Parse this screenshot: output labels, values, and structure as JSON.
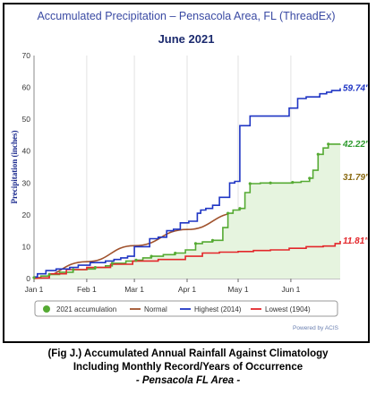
{
  "chart_data": {
    "type": "line",
    "title": "Accumulated Precipitation – Pensacola Area, FL (ThreadEx)",
    "subtitle": "June 2021",
    "ylabel": "Precipitation (inches)",
    "xlabel": "",
    "ylim": [
      0,
      70
    ],
    "yticks": [
      0,
      10,
      20,
      30,
      40,
      50,
      60,
      70
    ],
    "xlim": [
      "2021-01-01",
      "2021-06-30"
    ],
    "xticks": [
      {
        "date": "2021-01-01",
        "label": "Jan 1"
      },
      {
        "date": "2021-02-01",
        "label": "Feb 1"
      },
      {
        "date": "2021-03-01",
        "label": "Mar 1"
      },
      {
        "date": "2021-04-01",
        "label": "Apr 1"
      },
      {
        "date": "2021-05-01",
        "label": "May 1"
      },
      {
        "date": "2021-06-01",
        "label": "Jun 1"
      }
    ],
    "grid": {
      "horizontal": false,
      "vertical": true
    },
    "legend_position": "bottom",
    "credit": "Powered by ACIS",
    "series": [
      {
        "name": "2021 accumulation",
        "color": "#55aa33",
        "style": "step-fill",
        "x": [
          "2021-01-01",
          "2021-01-05",
          "2021-01-10",
          "2021-01-16",
          "2021-01-24",
          "2021-02-01",
          "2021-02-06",
          "2021-02-12",
          "2021-02-16",
          "2021-02-24",
          "2021-03-02",
          "2021-03-06",
          "2021-03-11",
          "2021-03-18",
          "2021-03-25",
          "2021-03-31",
          "2021-04-06",
          "2021-04-10",
          "2021-04-16",
          "2021-04-22",
          "2021-04-25",
          "2021-04-28",
          "2021-05-02",
          "2021-05-05",
          "2021-05-08",
          "2021-05-14",
          "2021-05-20",
          "2021-05-27",
          "2021-06-02",
          "2021-06-07",
          "2021-06-12",
          "2021-06-14",
          "2021-06-17",
          "2021-06-20",
          "2021-06-23",
          "2021-06-30"
        ],
        "y": [
          0.3,
          0.8,
          1.3,
          2.0,
          2.8,
          3.0,
          3.5,
          4.0,
          4.8,
          5.5,
          5.8,
          6.5,
          7.0,
          7.5,
          8.0,
          9.0,
          11.0,
          11.5,
          12.0,
          16.0,
          20.5,
          21.5,
          22.0,
          27.0,
          29.8,
          30.0,
          30.0,
          30.0,
          30.2,
          30.5,
          31.5,
          34.0,
          39.0,
          41.0,
          42.2,
          42.22
        ]
      },
      {
        "name": "Normal",
        "color": "#a0522d",
        "style": "line",
        "x": [
          "2021-01-01",
          "2021-02-01",
          "2021-03-01",
          "2021-04-01",
          "2021-05-01",
          "2021-06-01",
          "2021-06-30"
        ],
        "y": [
          0.0,
          5.3,
          10.3,
          15.4,
          20.6,
          24.6,
          31.79
        ]
      },
      {
        "name": "Highest (2014)",
        "color": "#1f35c4",
        "style": "step",
        "x": [
          "2021-01-01",
          "2021-01-03",
          "2021-01-08",
          "2021-01-14",
          "2021-01-22",
          "2021-01-27",
          "2021-02-03",
          "2021-02-12",
          "2021-02-17",
          "2021-02-21",
          "2021-02-25",
          "2021-03-01",
          "2021-03-10",
          "2021-03-15",
          "2021-03-20",
          "2021-03-24",
          "2021-03-28",
          "2021-04-02",
          "2021-04-07",
          "2021-04-09",
          "2021-04-12",
          "2021-04-16",
          "2021-04-20",
          "2021-04-26",
          "2021-04-29",
          "2021-05-02",
          "2021-05-08",
          "2021-05-14",
          "2021-05-20",
          "2021-05-27",
          "2021-05-31",
          "2021-06-05",
          "2021-06-10",
          "2021-06-14",
          "2021-06-18",
          "2021-06-22",
          "2021-06-25",
          "2021-06-30"
        ],
        "y": [
          0.5,
          1.5,
          2.5,
          3.0,
          3.5,
          4.2,
          5.0,
          5.5,
          6.0,
          6.5,
          7.0,
          10.0,
          12.5,
          13.0,
          15.0,
          15.5,
          17.5,
          18.0,
          20.5,
          21.5,
          22.0,
          23.0,
          25.5,
          30.0,
          30.5,
          48.0,
          51.0,
          51.0,
          51.0,
          51.0,
          53.5,
          56.5,
          57.0,
          57.0,
          58.0,
          58.5,
          59.0,
          59.74
        ]
      },
      {
        "name": "Lowest (1904)",
        "color": "#e3262a",
        "style": "step",
        "x": [
          "2021-01-01",
          "2021-01-10",
          "2021-01-20",
          "2021-02-01",
          "2021-02-15",
          "2021-02-28",
          "2021-03-15",
          "2021-03-31",
          "2021-04-10",
          "2021-04-20",
          "2021-05-01",
          "2021-05-10",
          "2021-05-20",
          "2021-05-31",
          "2021-06-10",
          "2021-06-20",
          "2021-06-27",
          "2021-06-30"
        ],
        "y": [
          0.2,
          1.5,
          2.8,
          3.5,
          4.5,
          5.5,
          6.0,
          7.0,
          8.0,
          8.3,
          8.5,
          8.8,
          9.0,
          9.5,
          10.0,
          10.2,
          11.0,
          11.81
        ]
      }
    ],
    "end_labels": [
      {
        "series": "Highest (2014)",
        "text": "59.74″",
        "color": "#1f35c4"
      },
      {
        "series": "2021 accumulation",
        "text": "42.22″",
        "color": "#2e9b2e"
      },
      {
        "series": "Normal",
        "text": "31.79″",
        "color": "#8a6a12"
      },
      {
        "series": "Lowest (1904)",
        "text": "11.81″",
        "color": "#e3262a"
      }
    ]
  },
  "caption": {
    "line1": "(Fig J.) Accumulated Annual Rainfall Against  Climatology",
    "line2": "Including Monthly Record/Years of Occurrence",
    "line3": "- Pensacola FL Area -"
  }
}
